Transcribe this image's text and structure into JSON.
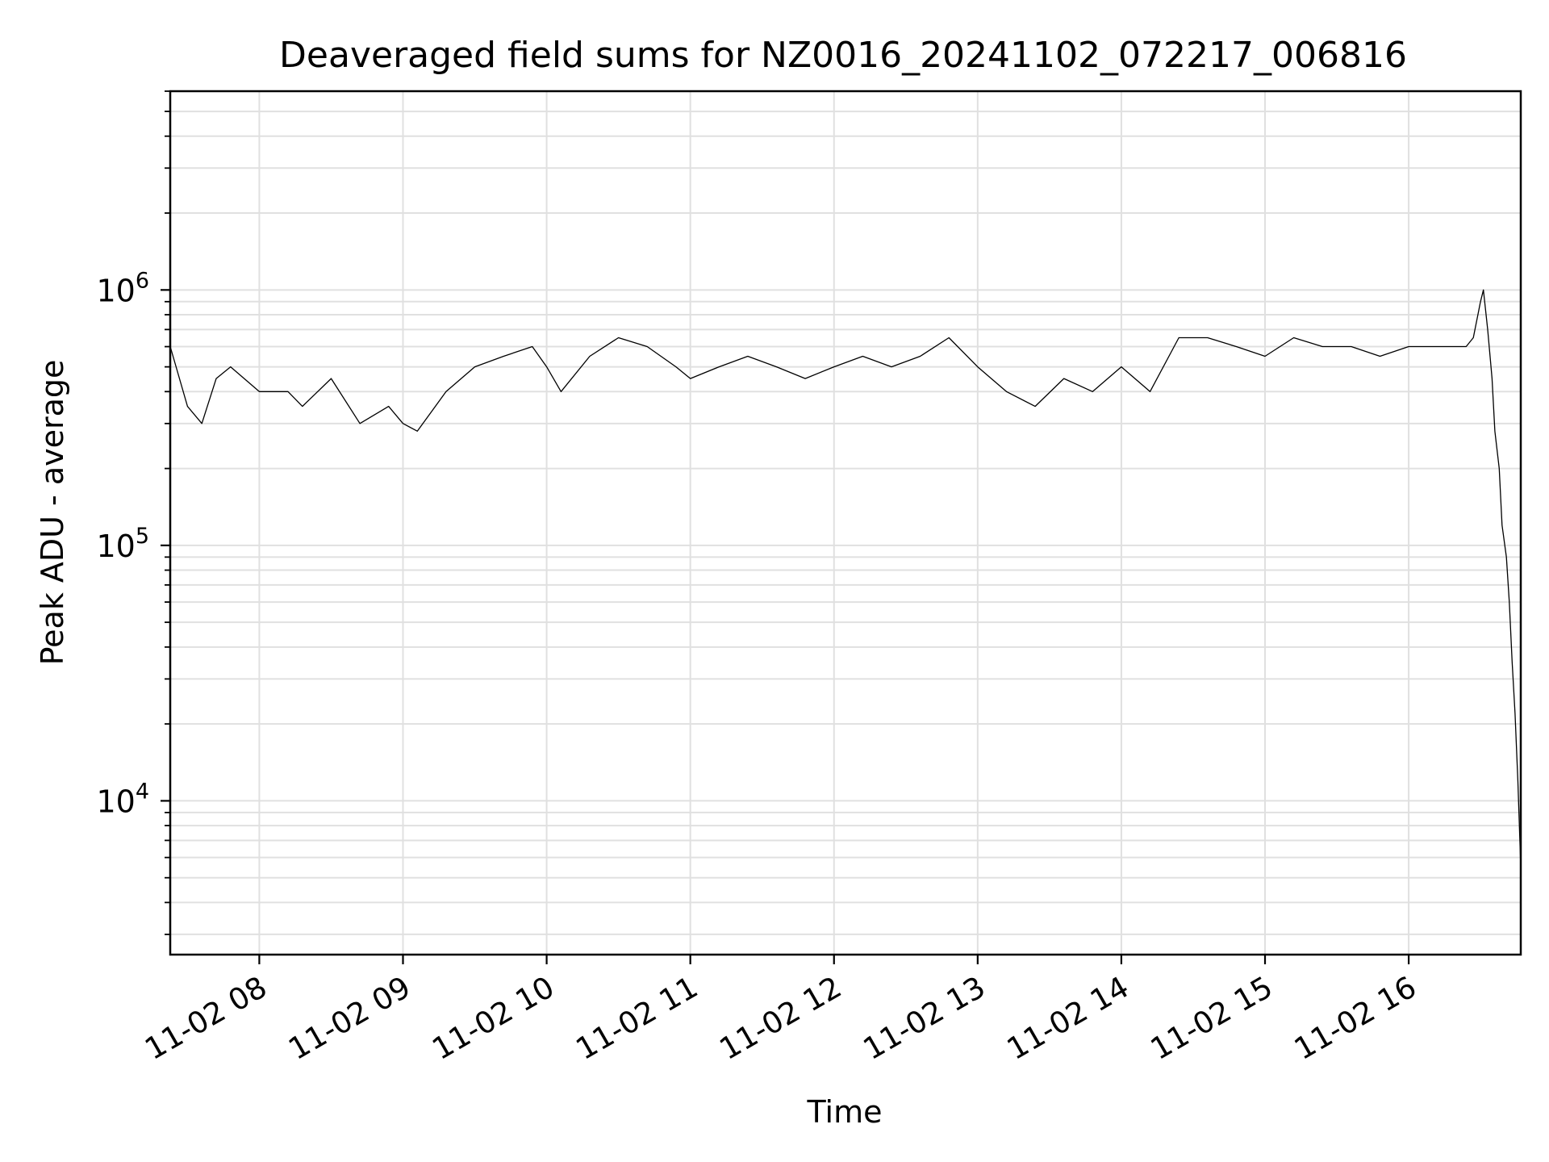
{
  "chart_data": {
    "type": "line",
    "title": "Deaveraged field sums for NZ0016_20241102_072217_006816",
    "xlabel": "Time",
    "ylabel": "Peak ADU - average",
    "y_scale": "log",
    "ylim": [
      2500,
      6000000
    ],
    "y_ticks": [
      {
        "value": 10000,
        "base": "10",
        "exp": "4"
      },
      {
        "value": 100000,
        "base": "10",
        "exp": "5"
      },
      {
        "value": 1000000,
        "base": "10",
        "exp": "6"
      }
    ],
    "x_ticks": [
      "11-02 08",
      "11-02 09",
      "11-02 10",
      "11-02 11",
      "11-02 12",
      "11-02 13",
      "11-02 14",
      "11-02 15",
      "11-02 16"
    ],
    "x_hours_start": 7.38,
    "x_hours_end": 16.78,
    "grid": true,
    "line_color": "#000000",
    "grid_color": "#e0e0e0",
    "series": [
      {
        "name": "",
        "hours": [
          7.38,
          7.5,
          7.6,
          7.7,
          7.8,
          8.0,
          8.2,
          8.3,
          8.5,
          8.7,
          8.9,
          9.0,
          9.1,
          9.3,
          9.5,
          9.7,
          9.9,
          10.0,
          10.1,
          10.3,
          10.5,
          10.7,
          10.9,
          11.0,
          11.2,
          11.4,
          11.6,
          11.8,
          12.0,
          12.2,
          12.4,
          12.6,
          12.8,
          13.0,
          13.2,
          13.4,
          13.6,
          13.8,
          14.0,
          14.2,
          14.4,
          14.6,
          14.8,
          15.0,
          15.2,
          15.4,
          15.6,
          15.8,
          16.0,
          16.2,
          16.4,
          16.45,
          16.5,
          16.52,
          16.55,
          16.58,
          16.6,
          16.63,
          16.65,
          16.68,
          16.7,
          16.72,
          16.74,
          16.76,
          16.78
        ],
        "values": [
          600000,
          350000,
          300000,
          450000,
          500000,
          400000,
          400000,
          350000,
          450000,
          300000,
          350000,
          300000,
          280000,
          400000,
          500000,
          550000,
          600000,
          500000,
          400000,
          550000,
          650000,
          600000,
          500000,
          450000,
          500000,
          550000,
          500000,
          450000,
          500000,
          550000,
          500000,
          550000,
          650000,
          500000,
          400000,
          350000,
          450000,
          400000,
          500000,
          400000,
          650000,
          650000,
          600000,
          550000,
          650000,
          600000,
          600000,
          550000,
          600000,
          600000,
          600000,
          650000,
          900000,
          1000000,
          700000,
          450000,
          280000,
          200000,
          120000,
          90000,
          60000,
          35000,
          22000,
          12000,
          5500
        ]
      }
    ]
  }
}
